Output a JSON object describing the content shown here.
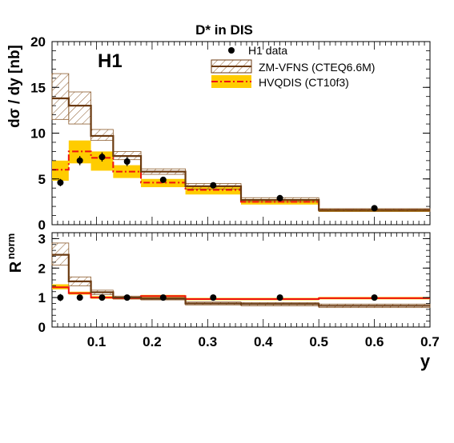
{
  "chart_data": [
    {
      "type": "histogram",
      "panel": "main",
      "title": "D* in DIS",
      "experiment_label": "H1",
      "ylabel": "dσ / dy [nb]",
      "xlim": [
        0.02,
        0.7
      ],
      "ylim": [
        0,
        20
      ],
      "yticks": [
        "0",
        "5",
        "10",
        "15",
        "20"
      ],
      "bin_edges": [
        0.02,
        0.05,
        0.09,
        0.13,
        0.18,
        0.26,
        0.36,
        0.5,
        0.7
      ],
      "legend": [
        "H1 data",
        "ZM-VFNS (CTEQ6.6M)",
        "HVQDIS (CT10f3)"
      ],
      "legend_position": "top-right",
      "series": [
        {
          "name": "H1 data",
          "style": "points",
          "x": [
            0.035,
            0.07,
            0.11,
            0.155,
            0.22,
            0.31,
            0.43,
            0.6
          ],
          "y": [
            4.6,
            7.0,
            7.4,
            6.9,
            4.9,
            4.3,
            2.9,
            1.8
          ],
          "err": [
            0.4,
            0.5,
            0.5,
            0.5,
            0.3,
            0.25,
            0.2,
            0.12
          ]
        },
        {
          "name": "ZM-VFNS (CTEQ6.6M)",
          "style": "hatched band",
          "central": [
            13.8,
            13.0,
            9.7,
            7.5,
            5.8,
            4.2,
            2.7,
            1.6
          ],
          "low": [
            11.5,
            11.0,
            9.2,
            7.1,
            5.5,
            3.9,
            2.5,
            1.45
          ],
          "high": [
            16.5,
            14.5,
            10.4,
            8.0,
            6.1,
            4.5,
            2.95,
            1.75
          ]
        },
        {
          "name": "HVQDIS (CT10f3)",
          "style": "dash-dot line with band",
          "central": [
            6.0,
            8.0,
            7.3,
            5.8,
            4.6,
            3.8,
            2.5,
            1.6
          ],
          "low": [
            4.8,
            6.7,
            5.9,
            5.1,
            4.1,
            3.3,
            2.2,
            1.4
          ],
          "high": [
            7.0,
            9.2,
            8.0,
            6.5,
            5.0,
            4.1,
            2.8,
            1.7
          ]
        }
      ]
    },
    {
      "type": "histogram",
      "panel": "ratio",
      "ylabel": "R",
      "ylabel_superscript": "norm",
      "xlabel": "y",
      "xlim": [
        0.02,
        0.7
      ],
      "ylim": [
        0,
        3.2
      ],
      "yticks": [
        "0",
        "1",
        "2",
        "3"
      ],
      "xticks": [
        {
          "v": 0.1,
          "label": "0.1"
        },
        {
          "v": 0.2,
          "label": "0.2"
        },
        {
          "v": 0.3,
          "label": "0.3"
        },
        {
          "v": 0.4,
          "label": "0.4"
        },
        {
          "v": 0.5,
          "label": "0.5"
        },
        {
          "v": 0.6,
          "label": "0.6"
        },
        {
          "v": 0.7,
          "label": "0.7"
        }
      ],
      "bin_edges": [
        0.02,
        0.05,
        0.09,
        0.13,
        0.18,
        0.26,
        0.36,
        0.5,
        0.7
      ],
      "series": [
        {
          "name": "H1 data",
          "style": "points",
          "x": [
            0.035,
            0.07,
            0.11,
            0.155,
            0.22,
            0.31,
            0.43,
            0.6
          ],
          "y": [
            1.0,
            1.0,
            1.0,
            1.0,
            1.0,
            1.0,
            1.0,
            1.0
          ],
          "err": [
            0.12,
            0.07,
            0.07,
            0.07,
            0.06,
            0.06,
            0.06,
            0.07
          ]
        },
        {
          "name": "ZM-VFNS (CTEQ6.6M)",
          "style": "hatched band",
          "central": [
            2.45,
            1.55,
            1.18,
            1.0,
            0.96,
            0.8,
            0.78,
            0.72
          ],
          "low": [
            2.1,
            1.4,
            1.1,
            0.95,
            0.92,
            0.75,
            0.72,
            0.66
          ],
          "high": [
            2.85,
            1.7,
            1.25,
            1.05,
            1.0,
            0.85,
            0.83,
            0.78
          ]
        },
        {
          "name": "HVQDIS (CT10f3)",
          "style": "solid line with band",
          "central": [
            1.35,
            1.15,
            1.0,
            0.98,
            1.05,
            0.95,
            0.95,
            0.98
          ],
          "low": [
            1.28,
            1.1,
            0.96,
            0.94,
            1.01,
            0.91,
            0.91,
            0.94
          ],
          "high": [
            1.45,
            1.2,
            1.05,
            1.02,
            1.09,
            0.99,
            0.99,
            1.02
          ]
        }
      ]
    }
  ],
  "colors": {
    "zm_line": "#6b3a10",
    "zm_hatch": "#8b5a2b",
    "hv_band": "#ffcc00",
    "hv_line": "#ee1111",
    "data": "#000000"
  }
}
